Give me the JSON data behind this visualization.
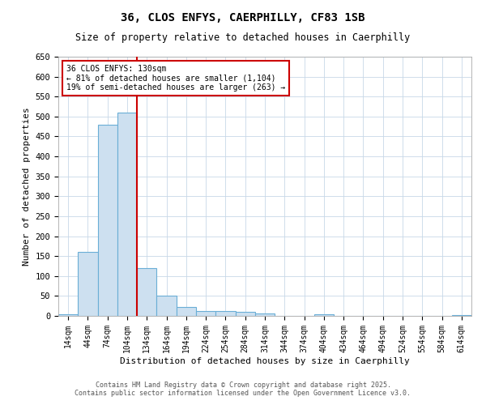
{
  "title": "36, CLOS ENFYS, CAERPHILLY, CF83 1SB",
  "subtitle": "Size of property relative to detached houses in Caerphilly",
  "xlabel": "Distribution of detached houses by size in Caerphilly",
  "ylabel": "Number of detached properties",
  "bar_labels": [
    "14sqm",
    "44sqm",
    "74sqm",
    "104sqm",
    "134sqm",
    "164sqm",
    "194sqm",
    "224sqm",
    "254sqm",
    "284sqm",
    "314sqm",
    "344sqm",
    "374sqm",
    "404sqm",
    "434sqm",
    "464sqm",
    "494sqm",
    "524sqm",
    "554sqm",
    "584sqm",
    "614sqm"
  ],
  "bar_values": [
    5,
    160,
    480,
    510,
    120,
    50,
    22,
    13,
    12,
    10,
    7,
    0,
    0,
    5,
    0,
    0,
    0,
    0,
    0,
    0,
    3
  ],
  "bar_color": "#cde0f0",
  "bar_edgecolor": "#6aaed6",
  "vline_color": "#cc0000",
  "annotation_text": "36 CLOS ENFYS: 130sqm\n← 81% of detached houses are smaller (1,104)\n19% of semi-detached houses are larger (263) →",
  "annotation_box_edgecolor": "#cc0000",
  "ylim": [
    0,
    650
  ],
  "yticks": [
    0,
    50,
    100,
    150,
    200,
    250,
    300,
    350,
    400,
    450,
    500,
    550,
    600,
    650
  ],
  "footer_line1": "Contains HM Land Registry data © Crown copyright and database right 2025.",
  "footer_line2": "Contains public sector information licensed under the Open Government Licence v3.0.",
  "background_color": "#ffffff",
  "grid_color": "#c8d8e8"
}
